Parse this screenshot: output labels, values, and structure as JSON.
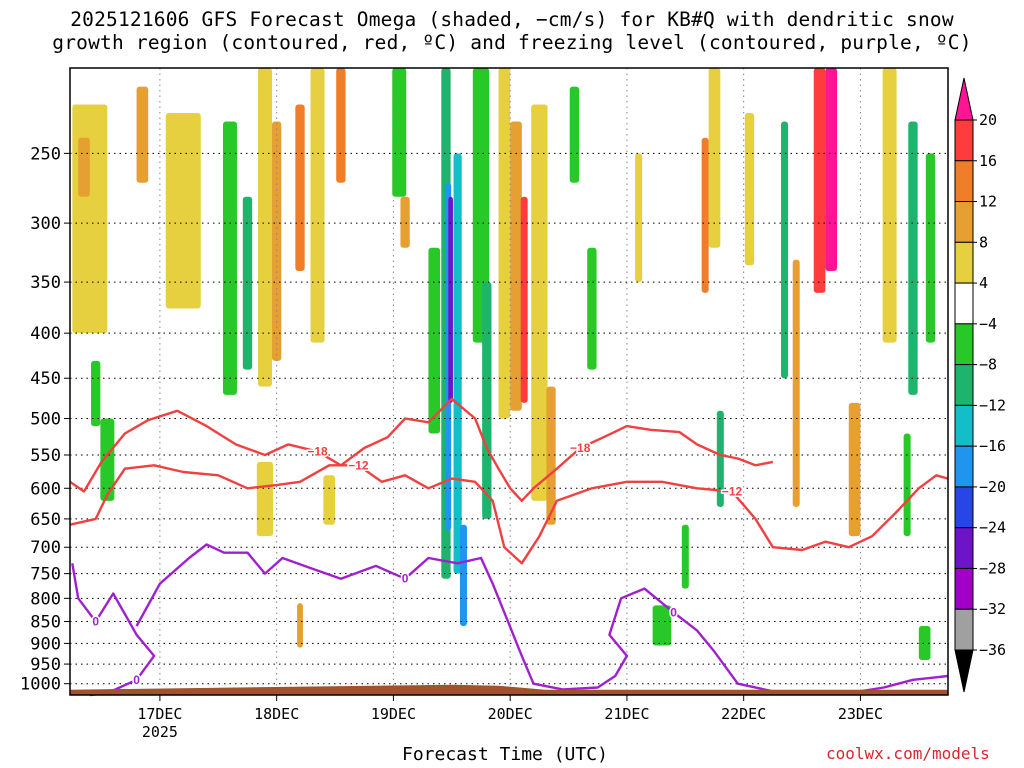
{
  "title_lines": [
    "2025121606 GFS Forecast Omega (shaded, −cm/s) for KB#Q with dendritic snow",
    "growth region (contoured, red, ºC) and freezing level (contoured, purple, ºC)"
  ],
  "watermark": "coolwx.com/models",
  "chart_data": {
    "type": "heatmap",
    "title": "2025121606 GFS Forecast Omega (shaded, −cm/s) for KB#Q with dendritic snow growth region (contoured, red, ºC) and freezing level (contoured, purple, ºC)",
    "xlabel": "Forecast Time (UTC)",
    "ylabel": "",
    "x_ticks": [
      {
        "label": "17DEC",
        "sub": "2025",
        "day": 1
      },
      {
        "label": "18DEC",
        "sub": "",
        "day": 2
      },
      {
        "label": "19DEC",
        "sub": "",
        "day": 3
      },
      {
        "label": "20DEC",
        "sub": "",
        "day": 4
      },
      {
        "label": "21DEC",
        "sub": "",
        "day": 5
      },
      {
        "label": "22DEC",
        "sub": "",
        "day": 6
      },
      {
        "label": "23DEC",
        "sub": "",
        "day": 7
      }
    ],
    "xlim_days": [
      0.23,
      7.75
    ],
    "y_ticks": [
      250,
      300,
      350,
      400,
      450,
      500,
      550,
      600,
      650,
      700,
      750,
      800,
      850,
      900,
      950,
      1000
    ],
    "ylim_hpa": [
      1030,
      200
    ],
    "y_scale": "log-pressure",
    "grid": true,
    "colorbar": {
      "labels": [
        "20",
        "16",
        "12",
        "8",
        "4",
        "−4",
        "−8",
        "−12",
        "−16",
        "−20",
        "−24",
        "−28",
        "−32",
        "−36"
      ],
      "colors": [
        "#ff1493",
        "#ff3c3c",
        "#f07d28",
        "#e6a032",
        "#e6d040",
        "#ffffff",
        "#28c828",
        "#1eb46e",
        "#14bec8",
        "#1e96f0",
        "#2846e6",
        "#6e14c8",
        "#a000c8",
        "#a0a0a0",
        "#000000"
      ]
    },
    "omega_cells": [
      {
        "d": 0.4,
        "p": 310,
        "w": 0.3,
        "h": 180,
        "v": 5
      },
      {
        "d": 0.35,
        "p": 260,
        "w": 0.1,
        "h": 40,
        "v": 9
      },
      {
        "d": 0.45,
        "p": 470,
        "w": 0.08,
        "h": 80,
        "v": -6
      },
      {
        "d": 0.55,
        "p": 560,
        "w": 0.12,
        "h": 120,
        "v": -6
      },
      {
        "d": 0.85,
        "p": 240,
        "w": 0.1,
        "h": 60,
        "v": 9
      },
      {
        "d": 1.2,
        "p": 300,
        "w": 0.3,
        "h": 150,
        "v": 5
      },
      {
        "d": 1.6,
        "p": 350,
        "w": 0.12,
        "h": 240,
        "v": -6
      },
      {
        "d": 1.75,
        "p": 360,
        "w": 0.08,
        "h": 160,
        "v": -11
      },
      {
        "d": 1.9,
        "p": 310,
        "w": 0.12,
        "h": 300,
        "v": 5
      },
      {
        "d": 2.0,
        "p": 330,
        "w": 0.08,
        "h": 200,
        "v": 9
      },
      {
        "d": 2.2,
        "p": 280,
        "w": 0.08,
        "h": 120,
        "v": 13
      },
      {
        "d": 2.35,
        "p": 300,
        "w": 0.12,
        "h": 220,
        "v": 5
      },
      {
        "d": 2.55,
        "p": 230,
        "w": 0.08,
        "h": 80,
        "v": 13
      },
      {
        "d": 2.45,
        "p": 620,
        "w": 0.1,
        "h": 80,
        "v": 5
      },
      {
        "d": 1.9,
        "p": 620,
        "w": 0.14,
        "h": 120,
        "v": 5
      },
      {
        "d": 2.2,
        "p": 860,
        "w": 0.05,
        "h": 100,
        "v": 9
      },
      {
        "d": 3.05,
        "p": 240,
        "w": 0.12,
        "h": 80,
        "v": -6
      },
      {
        "d": 3.1,
        "p": 300,
        "w": 0.08,
        "h": 40,
        "v": 9
      },
      {
        "d": 3.35,
        "p": 420,
        "w": 0.1,
        "h": 200,
        "v": -6
      },
      {
        "d": 3.45,
        "p": 480,
        "w": 0.08,
        "h": 560,
        "v": -11
      },
      {
        "d": 3.47,
        "p": 470,
        "w": 0.05,
        "h": 400,
        "v": -19
      },
      {
        "d": 3.49,
        "p": 380,
        "w": 0.04,
        "h": 200,
        "v": -27
      },
      {
        "d": 3.55,
        "p": 500,
        "w": 0.07,
        "h": 500,
        "v": -15
      },
      {
        "d": 3.6,
        "p": 760,
        "w": 0.06,
        "h": 200,
        "v": -19
      },
      {
        "d": 3.75,
        "p": 300,
        "w": 0.14,
        "h": 220,
        "v": -6
      },
      {
        "d": 3.8,
        "p": 500,
        "w": 0.08,
        "h": 300,
        "v": -11
      },
      {
        "d": 3.95,
        "p": 350,
        "w": 0.1,
        "h": 300,
        "v": 5
      },
      {
        "d": 4.05,
        "p": 360,
        "w": 0.1,
        "h": 260,
        "v": 9
      },
      {
        "d": 4.12,
        "p": 380,
        "w": 0.06,
        "h": 200,
        "v": 19
      },
      {
        "d": 4.25,
        "p": 420,
        "w": 0.14,
        "h": 400,
        "v": 5
      },
      {
        "d": 4.35,
        "p": 560,
        "w": 0.08,
        "h": 200,
        "v": 9
      },
      {
        "d": 4.55,
        "p": 240,
        "w": 0.08,
        "h": 60,
        "v": -6
      },
      {
        "d": 4.7,
        "p": 380,
        "w": 0.08,
        "h": 120,
        "v": -6
      },
      {
        "d": 5.1,
        "p": 300,
        "w": 0.06,
        "h": 100,
        "v": 5
      },
      {
        "d": 5.3,
        "p": 860,
        "w": 0.16,
        "h": 90,
        "v": -6
      },
      {
        "d": 5.5,
        "p": 720,
        "w": 0.06,
        "h": 120,
        "v": -6
      },
      {
        "d": 5.75,
        "p": 260,
        "w": 0.1,
        "h": 120,
        "v": 5
      },
      {
        "d": 5.67,
        "p": 300,
        "w": 0.06,
        "h": 120,
        "v": 13
      },
      {
        "d": 5.8,
        "p": 560,
        "w": 0.06,
        "h": 140,
        "v": -11
      },
      {
        "d": 6.05,
        "p": 280,
        "w": 0.08,
        "h": 110,
        "v": 5
      },
      {
        "d": 6.35,
        "p": 340,
        "w": 0.06,
        "h": 220,
        "v": -11
      },
      {
        "d": 6.45,
        "p": 480,
        "w": 0.06,
        "h": 300,
        "v": 9
      },
      {
        "d": 6.65,
        "p": 270,
        "w": 0.1,
        "h": 180,
        "v": 19
      },
      {
        "d": 6.75,
        "p": 260,
        "w": 0.1,
        "h": 160,
        "v": 21
      },
      {
        "d": 6.95,
        "p": 580,
        "w": 0.1,
        "h": 200,
        "v": 9
      },
      {
        "d": 7.25,
        "p": 300,
        "w": 0.12,
        "h": 220,
        "v": 5
      },
      {
        "d": 7.45,
        "p": 350,
        "w": 0.08,
        "h": 240,
        "v": -11
      },
      {
        "d": 7.6,
        "p": 330,
        "w": 0.08,
        "h": 160,
        "v": -6
      },
      {
        "d": 7.4,
        "p": 600,
        "w": 0.06,
        "h": 160,
        "v": -6
      },
      {
        "d": 7.55,
        "p": 900,
        "w": 0.1,
        "h": 80,
        "v": -6
      }
    ],
    "series": [
      {
        "name": "−18",
        "color": "#f04040",
        "points": [
          [
            0.23,
            590
          ],
          [
            0.35,
            605
          ],
          [
            0.5,
            560
          ],
          [
            0.7,
            520
          ],
          [
            0.9,
            502
          ],
          [
            1.15,
            490
          ],
          [
            1.4,
            510
          ],
          [
            1.65,
            535
          ],
          [
            1.9,
            550
          ],
          [
            2.1,
            535
          ],
          [
            2.35,
            545
          ],
          [
            2.55,
            565
          ],
          [
            2.75,
            540
          ],
          [
            2.95,
            525
          ],
          [
            3.1,
            500
          ],
          [
            3.3,
            505
          ],
          [
            3.5,
            475
          ],
          [
            3.7,
            500
          ],
          [
            3.8,
            540
          ],
          [
            3.9,
            570
          ],
          [
            4.0,
            600
          ],
          [
            4.1,
            620
          ],
          [
            4.2,
            600
          ],
          [
            4.4,
            570
          ],
          [
            4.6,
            540
          ],
          [
            4.8,
            525
          ],
          [
            5.0,
            510
          ],
          [
            5.2,
            515
          ],
          [
            5.45,
            518
          ],
          [
            5.6,
            535
          ],
          [
            5.8,
            550
          ],
          [
            5.95,
            555
          ],
          [
            6.1,
            565
          ],
          [
            6.25,
            560
          ]
        ]
      },
      {
        "name": "−12",
        "color": "#f04040",
        "points": [
          [
            0.23,
            660
          ],
          [
            0.45,
            650
          ],
          [
            0.55,
            610
          ],
          [
            0.7,
            570
          ],
          [
            0.95,
            565
          ],
          [
            1.2,
            575
          ],
          [
            1.5,
            580
          ],
          [
            1.75,
            600
          ],
          [
            2.0,
            595
          ],
          [
            2.2,
            590
          ],
          [
            2.45,
            565
          ],
          [
            2.7,
            565
          ],
          [
            2.9,
            590
          ],
          [
            3.1,
            580
          ],
          [
            3.3,
            600
          ],
          [
            3.5,
            585
          ],
          [
            3.7,
            590
          ],
          [
            3.85,
            620
          ],
          [
            3.95,
            700
          ],
          [
            4.1,
            730
          ],
          [
            4.25,
            680
          ],
          [
            4.4,
            620
          ],
          [
            4.7,
            600
          ],
          [
            5.0,
            590
          ],
          [
            5.3,
            590
          ],
          [
            5.6,
            600
          ],
          [
            5.9,
            605
          ],
          [
            6.1,
            650
          ],
          [
            6.25,
            700
          ],
          [
            6.5,
            705
          ],
          [
            6.7,
            690
          ],
          [
            6.9,
            700
          ],
          [
            7.1,
            680
          ],
          [
            7.3,
            640
          ],
          [
            7.5,
            600
          ],
          [
            7.65,
            580
          ],
          [
            7.75,
            585
          ]
        ]
      },
      {
        "name": "0",
        "color": "#a020d0",
        "points": [
          [
            0.25,
            730
          ],
          [
            0.3,
            800
          ],
          [
            0.45,
            850
          ],
          [
            0.6,
            790
          ],
          [
            0.8,
            880
          ],
          [
            0.95,
            930
          ],
          [
            0.8,
            990
          ],
          [
            0.55,
            1025
          ],
          [
            0.4,
            1030
          ]
        ]
      },
      {
        "name": "0",
        "color": "#a020d0",
        "points": [
          [
            0.8,
            860
          ],
          [
            1.0,
            770
          ],
          [
            1.25,
            720
          ],
          [
            1.4,
            695
          ],
          [
            1.55,
            710
          ],
          [
            1.75,
            710
          ],
          [
            1.9,
            750
          ],
          [
            2.05,
            720
          ],
          [
            2.3,
            740
          ],
          [
            2.55,
            760
          ],
          [
            2.85,
            735
          ],
          [
            3.1,
            760
          ],
          [
            3.3,
            720
          ],
          [
            3.55,
            730
          ],
          [
            3.75,
            720
          ],
          [
            3.85,
            770
          ],
          [
            3.95,
            830
          ],
          [
            4.1,
            930
          ],
          [
            4.2,
            1000
          ],
          [
            4.45,
            1015
          ],
          [
            4.75,
            1010
          ],
          [
            4.9,
            980
          ],
          [
            5.0,
            930
          ],
          [
            4.85,
            880
          ],
          [
            4.95,
            800
          ],
          [
            5.15,
            780
          ],
          [
            5.4,
            830
          ],
          [
            5.6,
            870
          ],
          [
            5.75,
            920
          ],
          [
            5.95,
            1000
          ],
          [
            6.25,
            1020
          ],
          [
            6.5,
            1025
          ],
          [
            6.9,
            1025
          ],
          [
            7.2,
            1010
          ],
          [
            7.45,
            990
          ],
          [
            7.6,
            985
          ],
          [
            7.75,
            980
          ]
        ]
      }
    ]
  }
}
